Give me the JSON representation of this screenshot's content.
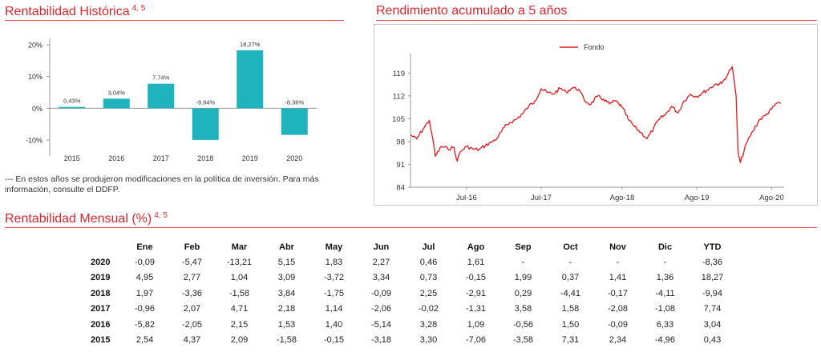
{
  "sections": {
    "historical": {
      "title": "Rentabilidad Histórica",
      "sup": "4, 5"
    },
    "cumulative": {
      "title": "Rendimiento acumulado a 5 años"
    },
    "monthly": {
      "title": "Rentabilidad Mensual (%)",
      "sup": "4, 5"
    }
  },
  "footnote": "--- En estos años se produjeron modificaciones en la política de inversión. Para más información, consulte el DDFP.",
  "colors": {
    "accent": "#d8262c",
    "bar": "#1fb3bd",
    "line": "#e8161c"
  },
  "chart_data": [
    {
      "type": "bar",
      "categories": [
        "2015",
        "2016",
        "2017",
        "2018",
        "2019",
        "2020"
      ],
      "values": [
        0.43,
        3.04,
        7.74,
        -9.94,
        18.27,
        -8.36
      ],
      "value_labels": [
        "0,43%",
        "3,04%",
        "7,74%",
        "-9,94%",
        "18,27%",
        "-8,36%"
      ],
      "ylim": [
        -15,
        22
      ],
      "yticks": [
        20,
        10,
        0,
        -10
      ],
      "ytick_labels": [
        "20%",
        "10%",
        "0%",
        "-10%"
      ],
      "grid": false
    },
    {
      "type": "line",
      "legend": "Fondo",
      "legend_position": "top-center",
      "ylim": [
        84,
        123
      ],
      "yticks": [
        84,
        91,
        98,
        105,
        112,
        119
      ],
      "ytick_labels": [
        "84",
        "91",
        "98",
        "105",
        "112",
        "119"
      ],
      "xticks": [
        "2016-07-31",
        "2017-07-31",
        "2018-08-31",
        "2019-08-31",
        "2020-08-31"
      ],
      "xtick_labels": [
        "Jul-16",
        "Jul-17",
        "Ago-18",
        "Ago-19",
        "Ago-20"
      ],
      "xlim": [
        "2015-10-31",
        "2020-10-31"
      ],
      "grid": false,
      "series": [
        {
          "name": "Fondo",
          "x": [
            "2015-10-31",
            "2015-11-30",
            "2015-12-31",
            "2016-01-31",
            "2016-02-15",
            "2016-02-29",
            "2016-03-31",
            "2016-04-30",
            "2016-05-31",
            "2016-06-15",
            "2016-06-30",
            "2016-07-31",
            "2016-08-31",
            "2016-09-30",
            "2016-10-31",
            "2016-11-30",
            "2016-12-31",
            "2017-01-31",
            "2017-02-28",
            "2017-03-31",
            "2017-04-30",
            "2017-05-31",
            "2017-06-30",
            "2017-07-31",
            "2017-08-31",
            "2017-09-30",
            "2017-10-31",
            "2017-11-30",
            "2017-12-31",
            "2018-01-31",
            "2018-02-28",
            "2018-03-31",
            "2018-04-30",
            "2018-05-31",
            "2018-06-30",
            "2018-07-31",
            "2018-08-31",
            "2018-09-30",
            "2018-10-31",
            "2018-11-30",
            "2018-12-31",
            "2019-01-31",
            "2019-02-28",
            "2019-03-31",
            "2019-04-30",
            "2019-05-31",
            "2019-06-30",
            "2019-07-31",
            "2019-08-31",
            "2019-09-30",
            "2019-10-31",
            "2019-11-30",
            "2019-12-31",
            "2020-01-31",
            "2020-02-20",
            "2020-03-10",
            "2020-03-20",
            "2020-03-31",
            "2020-04-30",
            "2020-05-31",
            "2020-06-30",
            "2020-07-31",
            "2020-08-31",
            "2020-09-30",
            "2020-10-15"
          ],
          "values": [
            100.0,
            98.8,
            101.8,
            104.5,
            99.5,
            93.5,
            96.5,
            95.8,
            96.2,
            92.0,
            94.8,
            96.5,
            95.7,
            95.5,
            96.8,
            97.8,
            99.2,
            102.3,
            103.8,
            104.8,
            106.5,
            108.8,
            110.4,
            114.2,
            113.0,
            112.6,
            114.3,
            113.2,
            114.5,
            114.0,
            110.5,
            109.4,
            111.8,
            111.0,
            109.5,
            110.5,
            108.5,
            104.8,
            102.5,
            100.8,
            98.9,
            102.0,
            104.8,
            106.3,
            108.8,
            106.8,
            110.5,
            112.5,
            111.8,
            113.0,
            114.2,
            115.6,
            115.8,
            118.8,
            121.0,
            112.0,
            94.5,
            91.5,
            97.5,
            101.2,
            104.5,
            106.0,
            108.0,
            110.0,
            109.8
          ]
        }
      ]
    },
    {
      "type": "table",
      "columns": [
        "Ene",
        "Feb",
        "Mar",
        "Abr",
        "May",
        "Jun",
        "Jul",
        "Ago",
        "Sep",
        "Oct",
        "Nov",
        "Dic",
        "YTD"
      ],
      "rows": [
        {
          "year": "2020",
          "values": [
            "-0,09",
            "-5,47",
            "-13,21",
            "5,15",
            "1,83",
            "2,27",
            "0,46",
            "1,61",
            "-",
            "-",
            "-",
            "-",
            "-8,36"
          ]
        },
        {
          "year": "2019",
          "values": [
            "4,95",
            "2,77",
            "1,04",
            "3,09",
            "-3,72",
            "3,34",
            "0,73",
            "-0,15",
            "1,99",
            "0,37",
            "1,41",
            "1,36",
            "18,27"
          ]
        },
        {
          "year": "2018",
          "values": [
            "1,97",
            "-3,36",
            "-1,58",
            "3,84",
            "-1,75",
            "-0,09",
            "2,25",
            "-2,91",
            "0,29",
            "-4,41",
            "-0,17",
            "-4,11",
            "-9,94"
          ]
        },
        {
          "year": "2017",
          "values": [
            "-0,96",
            "2,07",
            "4,71",
            "2,18",
            "1,14",
            "-2,06",
            "-0,02",
            "-1,31",
            "3,58",
            "1,58",
            "-2,08",
            "-1,08",
            "7,74"
          ]
        },
        {
          "year": "2016",
          "values": [
            "-5,82",
            "-2,05",
            "2,15",
            "1,53",
            "1,40",
            "-5,14",
            "3,28",
            "1,09",
            "-0,56",
            "1,50",
            "-0,09",
            "6,33",
            "3,04"
          ]
        },
        {
          "year": "2015",
          "values": [
            "2,54",
            "4,37",
            "2,09",
            "-1,58",
            "-0,15",
            "-3,18",
            "3,30",
            "-7,06",
            "-3,58",
            "7,31",
            "2,34",
            "-4,96",
            "0,43"
          ]
        }
      ]
    }
  ]
}
